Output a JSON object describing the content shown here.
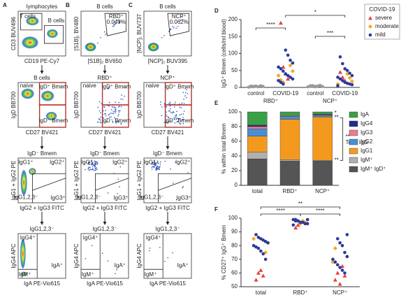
{
  "flow": {
    "panel_labels": [
      "A",
      "B",
      "C"
    ],
    "panels": [
      {
        "title": "lymphocytes",
        "ylabel": "CD3 BUV496",
        "xlabel": "CD19 PE-Cy7",
        "gates": [
          "T cells",
          "B cells"
        ]
      },
      {
        "title": "B cells",
        "ylabel": "[S1B]₁ BV480",
        "xlabel": "[S1B]₂ BV650",
        "gates": [
          "RBD⁺",
          "0.049%"
        ]
      },
      {
        "title": "B cells",
        "ylabel": "[NCP]₁ BUV737",
        "xlabel": "[NCP]₂ BUV395",
        "gates": [
          "NCP⁺",
          "0.062%"
        ]
      },
      {
        "title": "B cells",
        "ylabel": "IgD BB700",
        "xlabel": "CD27 BV421",
        "gates": [
          "naive",
          "IgD⁺ Bmem",
          "IgD⁻ Bmem"
        ]
      },
      {
        "title": "RBD⁺",
        "ylabel": "IgD BB700",
        "xlabel": "CD27 BV421",
        "gates": [
          "naive",
          "IgD⁺ Bmem",
          "IgD⁻ Bmem"
        ]
      },
      {
        "title": "NCP⁺",
        "ylabel": "IgD BB700",
        "xlabel": "CD27 BV421",
        "gates": [
          "naive",
          "IgD⁺ Bmem",
          "IgD⁻ Bmem"
        ]
      },
      {
        "title": "IgD⁻ Bmem",
        "ylabel": "IgG1 + IgG2 PE",
        "xlabel": "IgG2 + IgG3 FITC",
        "gates": [
          "IgG1⁺",
          "IgG2⁺",
          "IgG3⁺",
          "IgG1,2,3⁻"
        ]
      },
      {
        "title": "IgD⁻ Bmem",
        "ylabel": "IgG1 + IgG2 PE",
        "xlabel": "IgG2 + IgG3 FITC",
        "gates": [
          "IgG1⁺",
          "IgG2⁺",
          "IgG3⁺",
          "IgG1,2,3⁻"
        ]
      },
      {
        "title": "IgD⁻ Bmem",
        "ylabel": "IgG1 + IgG2 PE",
        "xlabel": "IgG2 + IgG3 FITC",
        "gates": [
          "IgG1⁺",
          "IgG2⁺",
          "IgG3⁺",
          "IgG1,2,3⁻"
        ]
      },
      {
        "title": "IgG1,2,3⁻",
        "ylabel": "IgG4 APC",
        "xlabel": "IgA PE-Vio615",
        "gates": [
          "IgG4⁺",
          "IgA⁺",
          "IgM⁺"
        ]
      },
      {
        "title": "IgG1,2,3⁻",
        "ylabel": "IgG4 APC",
        "xlabel": "IgA PE-Vio615",
        "gates": [
          "IgG4⁺",
          "IgA⁺",
          "IgM⁺"
        ]
      },
      {
        "title": "IgG1,2,3⁻",
        "ylabel": "IgG4 APC",
        "xlabel": "IgA PE-Vio615",
        "gates": [
          "IgG4⁺",
          "IgA⁺",
          "IgM⁺"
        ]
      }
    ]
  },
  "chart_data": [
    {
      "type": "scatter",
      "panel_label": "D",
      "ylabel": "IgG⁺ Bmem (cells/ml blood)",
      "categories": [
        "control",
        "COVID-19",
        "control",
        "COVID-19"
      ],
      "groups": [
        "RBD⁺",
        "NCP⁺"
      ],
      "ylim": [
        0,
        200
      ],
      "yticks": [
        0,
        50,
        100,
        150,
        200
      ],
      "legend_title": "COVID-19",
      "annotations": [
        "****",
        "***",
        "*"
      ],
      "series": [
        {
          "name": "severe",
          "color": "#e8403a",
          "marker": "triangle",
          "x": [
            1,
            1,
            1,
            1,
            3,
            3,
            3
          ],
          "values": [
            190,
            60,
            40,
            25,
            45,
            30,
            20
          ]
        },
        {
          "name": "moderate",
          "color": "#f5a623",
          "marker": "diamond",
          "x": [
            1,
            1,
            1,
            1,
            1,
            3,
            3,
            3,
            3
          ],
          "values": [
            65,
            48,
            35,
            22,
            15,
            40,
            28,
            18,
            10
          ]
        },
        {
          "name": "mild",
          "color": "#2a3a9a",
          "marker": "circle",
          "x": [
            1,
            1,
            1,
            1,
            1,
            1,
            1,
            1,
            1,
            1,
            1,
            1,
            1,
            1,
            3,
            3,
            3,
            3,
            3,
            3,
            3,
            3,
            3,
            3,
            3,
            3,
            3,
            3
          ],
          "values": [
            110,
            95,
            80,
            72,
            60,
            55,
            48,
            40,
            35,
            30,
            25,
            20,
            15,
            10,
            90,
            70,
            55,
            50,
            42,
            35,
            30,
            25,
            20,
            15,
            12,
            10,
            8,
            5
          ]
        },
        {
          "color": "#9a9a9a",
          "marker": "circle",
          "x": [
            0,
            0,
            0,
            0,
            0,
            0,
            0,
            0,
            0,
            0,
            2,
            2,
            2,
            2,
            2,
            2,
            2,
            2,
            2,
            2
          ],
          "values": [
            2,
            3,
            4,
            2,
            5,
            3,
            1,
            4,
            2,
            3,
            3,
            5,
            2,
            4,
            6,
            3,
            2,
            5,
            4,
            3
          ]
        }
      ]
    },
    {
      "type": "stacked_bar",
      "panel_label": "E",
      "ylabel": "% within total Bmem",
      "categories": [
        "total",
        "RBD⁺",
        "NCP⁺"
      ],
      "ylim": [
        0,
        100
      ],
      "yticks": [
        0,
        20,
        40,
        60,
        80,
        100
      ],
      "annotations": [
        "*",
        "**",
        "**",
        "Total IgG",
        "**"
      ],
      "series": [
        {
          "name": "IgA",
          "color": "#3aa047",
          "values": [
            18,
            5,
            3
          ]
        },
        {
          "name": "IgG4",
          "color": "#1f2f8c",
          "values": [
            2,
            0,
            1
          ]
        },
        {
          "name": "IgG3",
          "color": "#f07a8a",
          "values": [
            3,
            1,
            1
          ]
        },
        {
          "name": "IgG2",
          "color": "#4a8fd4",
          "values": [
            10,
            4,
            2
          ]
        },
        {
          "name": "IgG1",
          "color": "#f39a1e",
          "values": [
            22,
            55,
            59
          ]
        },
        {
          "name": "IgM⁺",
          "color": "#b0b0b0",
          "values": [
            9,
            2,
            1
          ]
        },
        {
          "name": "IgM⁺ IgD⁺",
          "color": "#555555",
          "values": [
            36,
            33,
            33
          ]
        }
      ]
    },
    {
      "type": "scatter",
      "panel_label": "F",
      "ylabel": "% CD27⁺ IgG⁺ Bmem",
      "categories": [
        "total",
        "RBD⁺",
        "NCP⁺"
      ],
      "ylim": [
        50,
        100
      ],
      "yticks": [
        50,
        60,
        70,
        80,
        90,
        100
      ],
      "annotations": [
        "****",
        "**",
        "****"
      ],
      "series": [
        {
          "name": "severe",
          "color": "#e8403a",
          "marker": "triangle",
          "x": [
            0,
            0,
            0,
            0,
            1,
            1,
            2,
            2,
            2,
            2,
            2
          ],
          "values": [
            55,
            60,
            62,
            58,
            93,
            95,
            55,
            60,
            52,
            65,
            58
          ]
        },
        {
          "name": "moderate",
          "color": "#f5a623",
          "marker": "diamond",
          "x": [
            0,
            0,
            0,
            1,
            1,
            1,
            2,
            2,
            2
          ],
          "values": [
            75,
            82,
            85,
            96,
            98,
            97,
            72,
            68,
            78
          ]
        },
        {
          "name": "mild",
          "color": "#2a3a9a",
          "marker": "circle",
          "x": [
            0,
            0,
            0,
            0,
            0,
            0,
            0,
            0,
            0,
            0,
            0,
            0,
            1,
            1,
            1,
            1,
            1,
            1,
            1,
            1,
            1,
            1,
            1,
            1,
            2,
            2,
            2,
            2,
            2,
            2,
            2,
            2,
            2,
            2,
            2,
            2
          ],
          "values": [
            88,
            86,
            85,
            84,
            83,
            82,
            80,
            79,
            78,
            76,
            74,
            70,
            99,
            99,
            98,
            98,
            97,
            97,
            96,
            96,
            95,
            99,
            98,
            97,
            85,
            82,
            80,
            75,
            72,
            70,
            68,
            66,
            64,
            62,
            60,
            88
          ]
        }
      ]
    }
  ]
}
